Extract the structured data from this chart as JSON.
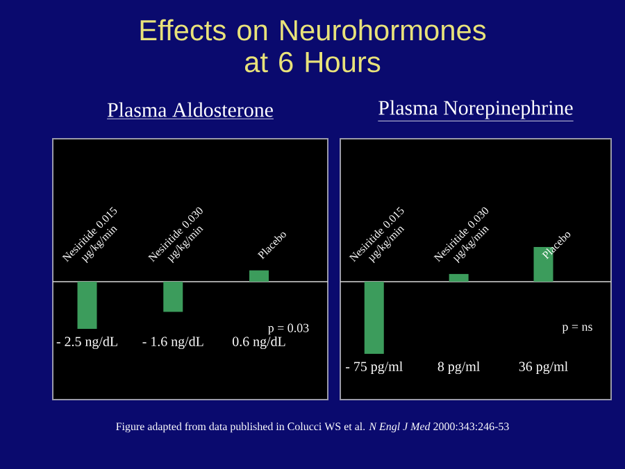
{
  "chart_data": [
    {
      "type": "bar",
      "title": "Effects on Neurohormones at 6 Hours",
      "subtitle": "Plasma Aldosterone",
      "categories": [
        "Nesiritide 0.015 µg/kg/min",
        "Nesiritide 0.030 µg/kg/min",
        "Placebo"
      ],
      "values": [
        -2.5,
        -1.6,
        0.6
      ],
      "value_labels": [
        "- 2.5 ng/dL",
        "- 1.6 ng/dL",
        "0.6 ng/dL"
      ],
      "color": "#3c9c5c",
      "annotations": [
        "p = 0.03"
      ]
    },
    {
      "type": "bar",
      "subtitle": "Plasma Norepinephrine",
      "categories": [
        "Nesiritide 0.015 µg/kg/min",
        "Nesiritide 0.030 µg/kg/min",
        "Placebo"
      ],
      "values": [
        -75,
        8,
        36
      ],
      "value_labels": [
        "- 75 pg/ml",
        "8 pg/ml",
        "36 pg/ml"
      ],
      "color": "#3c9c5c",
      "annotations": [
        "p = ns",
        "Figure adapted from data published in Colucci WS et al. *N Engl J Med* 2000:343:246-53"
      ]
    }
  ]
}
